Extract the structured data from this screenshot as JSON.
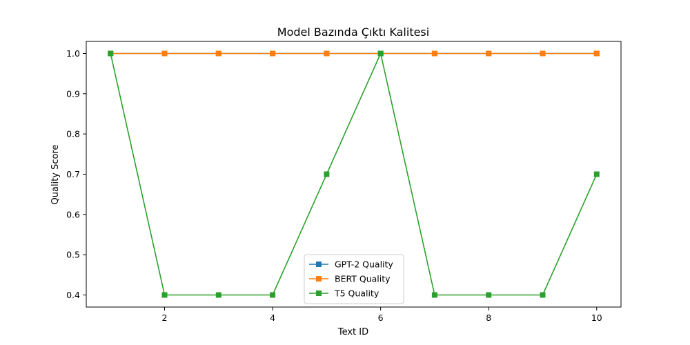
{
  "chart_data": {
    "type": "line",
    "title": "Model Bazında Çıktı Kalitesi",
    "xlabel": "Text ID",
    "ylabel": "Quality Score",
    "x": [
      1,
      2,
      3,
      4,
      5,
      6,
      7,
      8,
      9,
      10
    ],
    "xlim": [
      0.55,
      10.45
    ],
    "ylim": [
      0.37,
      1.03
    ],
    "xticks": [
      2,
      4,
      6,
      8,
      10
    ],
    "yticks": [
      0.4,
      0.5,
      0.6,
      0.7,
      0.8,
      0.9,
      1.0
    ],
    "ytick_labels": [
      "0.4",
      "0.5",
      "0.6",
      "0.7",
      "0.8",
      "0.9",
      "1.0"
    ],
    "grid": false,
    "legend_position": "lower-center",
    "series": [
      {
        "name": "GPT-2 Quality",
        "color": "#1f77b4",
        "marker": "square",
        "values": [
          1.0,
          1.0,
          1.0,
          1.0,
          1.0,
          1.0,
          1.0,
          1.0,
          1.0,
          1.0
        ]
      },
      {
        "name": "BERT Quality",
        "color": "#ff7f0e",
        "marker": "square",
        "values": [
          1.0,
          1.0,
          1.0,
          1.0,
          1.0,
          1.0,
          1.0,
          1.0,
          1.0,
          1.0
        ]
      },
      {
        "name": "T5 Quality",
        "color": "#2ca02c",
        "marker": "square",
        "values": [
          1.0,
          0.4,
          0.4,
          0.4,
          0.7,
          1.0,
          0.4,
          0.4,
          0.4,
          0.7
        ]
      }
    ]
  }
}
